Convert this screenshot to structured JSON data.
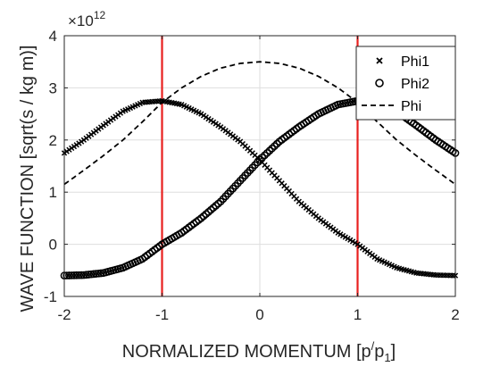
{
  "chart_data": {
    "type": "line",
    "xlabel": {
      "main": "NORMALIZED MOMENTUM  [p",
      "prime": "/",
      "denom": "p",
      "sub": "1",
      "close": "]"
    },
    "ylabel": "WAVE FUNCTION  [sqrt(s / kg m)]",
    "y_exponent": {
      "base": "×10",
      "power": "12"
    },
    "xlim": [
      -2,
      2
    ],
    "ylim": [
      -1,
      4
    ],
    "x_ticks": [
      -2,
      -1,
      0,
      1,
      2
    ],
    "y_ticks": [
      -1,
      0,
      1,
      2,
      3,
      4
    ],
    "grid": true,
    "legend_position": "top-right",
    "vertical_lines": {
      "x": [
        -1,
        1
      ],
      "color": "#e8201e"
    },
    "series": [
      {
        "name": "Phi1",
        "marker": "x",
        "x": [
          -2,
          -1.8,
          -1.6,
          -1.4,
          -1.2,
          -1,
          -0.8,
          -0.6,
          -0.4,
          -0.2,
          0,
          0.2,
          0.4,
          0.6,
          0.8,
          1,
          1.2,
          1.4,
          1.6,
          1.8,
          2
        ],
        "values": [
          1.75,
          2.0,
          2.28,
          2.55,
          2.72,
          2.75,
          2.68,
          2.5,
          2.25,
          1.97,
          1.62,
          1.22,
          0.82,
          0.5,
          0.22,
          0.0,
          -0.28,
          -0.45,
          -0.55,
          -0.59,
          -0.6
        ]
      },
      {
        "name": "Phi2",
        "marker": "o",
        "x": [
          -2,
          -1.8,
          -1.6,
          -1.4,
          -1.2,
          -1,
          -0.8,
          -0.6,
          -0.4,
          -0.2,
          0,
          0.2,
          0.4,
          0.6,
          0.8,
          1,
          1.2,
          1.4,
          1.6,
          1.8,
          2
        ],
        "values": [
          -0.6,
          -0.59,
          -0.55,
          -0.45,
          -0.28,
          0.0,
          0.22,
          0.5,
          0.82,
          1.22,
          1.62,
          1.97,
          2.25,
          2.5,
          2.68,
          2.75,
          2.72,
          2.55,
          2.28,
          2.0,
          1.75
        ]
      },
      {
        "name": "Phi",
        "marker": "dashed",
        "x": [
          -2,
          -1.8,
          -1.6,
          -1.4,
          -1.2,
          -1,
          -0.8,
          -0.6,
          -0.4,
          -0.2,
          0,
          0.2,
          0.4,
          0.6,
          0.8,
          1,
          1.2,
          1.4,
          1.6,
          1.8,
          2
        ],
        "values": [
          1.15,
          1.42,
          1.7,
          2.0,
          2.35,
          2.72,
          3.0,
          3.22,
          3.38,
          3.47,
          3.5,
          3.47,
          3.38,
          3.22,
          3.0,
          2.72,
          2.35,
          2.0,
          1.7,
          1.42,
          1.15
        ]
      }
    ]
  }
}
